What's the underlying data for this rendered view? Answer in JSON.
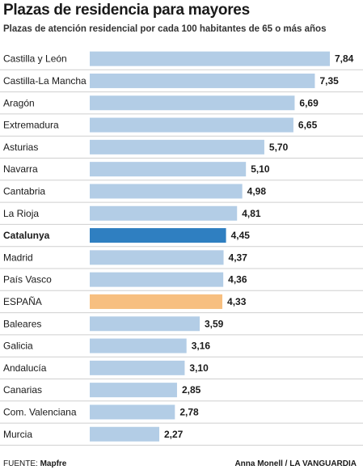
{
  "header": {
    "title": "Plazas de residencia para mayores",
    "subtitle": "Plazas de atención residencial por cada 100 habitantes de 65 o más años"
  },
  "footer": {
    "source_label": "FUENTE:",
    "source_name": "Mapfre",
    "credit": "Anna Monell / LA VANGUARDIA"
  },
  "colors": {
    "bar_default": "#b3cde6",
    "bar_catalunya": "#2f7fc1",
    "bar_espana": "#f7bf80",
    "row_divider": "#cfcfcf"
  },
  "chart_data": {
    "type": "bar",
    "orientation": "horizontal",
    "title": "Plazas de residencia para mayores",
    "subtitle": "Plazas de atención residencial por cada 100 habitantes de 65 o más años",
    "categories": [
      "Castilla y León",
      "Castilla-La Mancha",
      "Aragón",
      "Extremadura",
      "Asturias",
      "Navarra",
      "Cantabria",
      "La Rioja",
      "Catalunya",
      "Madrid",
      "País Vasco",
      "ESPAÑA",
      "Baleares",
      "Galicia",
      "Andalucía",
      "Canarias",
      "Com. Valenciana",
      "Murcia"
    ],
    "values": [
      7.84,
      7.35,
      6.69,
      6.65,
      5.7,
      5.1,
      4.98,
      4.81,
      4.45,
      4.37,
      4.36,
      4.33,
      3.59,
      3.16,
      3.1,
      2.85,
      2.78,
      2.27
    ],
    "value_labels": [
      "7,84",
      "7,35",
      "6,69",
      "6,65",
      "5,70",
      "5,10",
      "4,98",
      "4,81",
      "4,45",
      "4,37",
      "4,36",
      "4,33",
      "3,59",
      "3,16",
      "3,10",
      "2,85",
      "2,78",
      "2,27"
    ],
    "highlight": {
      "Catalunya": "bar_catalunya",
      "ESPAÑA": "bar_espana"
    },
    "bold_categories": [
      "Catalunya"
    ],
    "xlim": [
      0,
      7.84
    ],
    "grid": false,
    "legend": "none"
  }
}
